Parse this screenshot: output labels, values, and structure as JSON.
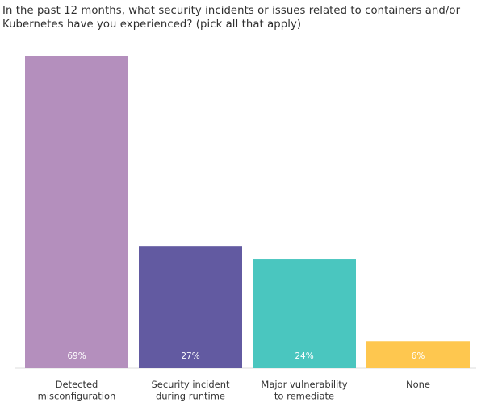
{
  "chart_data": {
    "type": "bar",
    "title": "In the past 12 months, what security incidents or issues related to containers and/or Kubernetes have you experienced? (pick all that apply)",
    "title_lines": [
      "In the past 12 months, what security incidents or issues related to containers and/or",
      "Kubernetes have you experienced? (pick all that apply)"
    ],
    "categories": [
      [
        "Detected",
        "misconfiguration"
      ],
      [
        "Security incident",
        "during runtime"
      ],
      [
        "Major vulnerability",
        "to remediate"
      ],
      [
        "None"
      ]
    ],
    "values": [
      69,
      27,
      24,
      6
    ],
    "value_labels": [
      "69%",
      "27%",
      "24%",
      "6%"
    ],
    "colors": [
      "#b48fbd",
      "#625aa1",
      "#4ac6bf",
      "#fec74f"
    ],
    "label_colors": [
      "#ffffff",
      "#ffffff",
      "#ffffff",
      "#333333"
    ],
    "ylim": [
      0,
      69
    ],
    "xlabel": "",
    "ylabel": "",
    "grid": false,
    "legend": "none"
  }
}
